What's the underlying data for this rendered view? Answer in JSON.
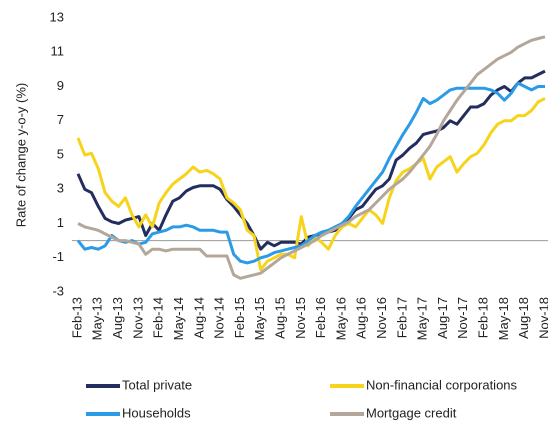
{
  "chart_data": {
    "type": "line",
    "y_label": "Rate of change y-o-y (%)",
    "categories": [
      "Feb-13",
      null,
      null,
      "May-13",
      null,
      null,
      "Aug-13",
      null,
      null,
      "Nov-13",
      null,
      null,
      "Feb-14",
      null,
      null,
      "May-14",
      null,
      null,
      "Aug-14",
      null,
      null,
      "Nov-14",
      null,
      null,
      "Feb-15",
      null,
      null,
      "May-15",
      null,
      null,
      "Aug-15",
      null,
      null,
      "Nov-15",
      null,
      null,
      "Feb-16",
      null,
      null,
      "May-16",
      null,
      null,
      "Aug-16",
      null,
      null,
      "Nov-16",
      null,
      null,
      "Feb-17",
      null,
      null,
      "May-17",
      null,
      null,
      "Aug-17",
      null,
      null,
      "Nov-17",
      null,
      null,
      "Feb-18",
      null,
      null,
      "May-18",
      null,
      null,
      "Aug-18",
      null,
      null,
      "Nov-18"
    ],
    "series": [
      {
        "name": "Total private",
        "color": "#232d5e",
        "values": [
          3.9,
          3.0,
          2.8,
          2.0,
          1.3,
          1.1,
          1.0,
          1.2,
          1.3,
          1.4,
          0.3,
          1.0,
          0.6,
          1.5,
          2.3,
          2.5,
          2.9,
          3.1,
          3.2,
          3.2,
          3.2,
          3.0,
          2.4,
          2.0,
          1.5,
          1.0,
          0.3,
          -0.5,
          -0.1,
          -0.3,
          -0.1,
          -0.1,
          -0.1,
          -0.2,
          0.2,
          0.3,
          0.4,
          0.5,
          0.6,
          1.0,
          1.3,
          1.8,
          2.0,
          2.5,
          3.0,
          3.2,
          3.6,
          4.7,
          5.0,
          5.4,
          5.7,
          6.2,
          6.3,
          6.4,
          6.6,
          7.0,
          6.8,
          7.3,
          7.8,
          7.8,
          8.0,
          8.5,
          8.8,
          9.0,
          8.7,
          9.2,
          9.5,
          9.5,
          9.7,
          9.9
        ]
      },
      {
        "name": "Non-financial corporations",
        "color": "#f7d31c",
        "values": [
          6.0,
          5.0,
          5.1,
          4.2,
          2.8,
          2.3,
          2.0,
          2.5,
          1.5,
          0.8,
          1.5,
          0.8,
          2.2,
          2.8,
          3.3,
          3.6,
          3.9,
          4.3,
          4.0,
          4.1,
          3.9,
          3.6,
          2.5,
          2.2,
          1.8,
          0.6,
          0.3,
          -1.7,
          -1.2,
          -1.0,
          -0.8,
          -0.8,
          -1.0,
          1.4,
          -0.3,
          0.2,
          -0.1,
          -0.5,
          0.3,
          0.8,
          1.0,
          0.8,
          1.3,
          1.8,
          1.5,
          1.0,
          2.5,
          3.5,
          4.0,
          4.2,
          4.5,
          4.8,
          3.6,
          4.3,
          4.6,
          4.9,
          4.0,
          4.5,
          4.9,
          5.1,
          5.6,
          6.3,
          6.8,
          7.0,
          7.0,
          7.3,
          7.3,
          7.6,
          8.1,
          8.3
        ]
      },
      {
        "name": "Households",
        "color": "#2b9be8",
        "values": [
          0.0,
          -0.5,
          -0.4,
          -0.5,
          -0.3,
          0.3,
          0.0,
          -0.1,
          0.0,
          -0.2,
          -0.1,
          0.4,
          0.5,
          0.6,
          0.8,
          0.8,
          0.9,
          0.8,
          0.6,
          0.6,
          0.6,
          0.5,
          0.5,
          -0.8,
          -1.2,
          -1.3,
          -1.2,
          -1.0,
          -0.9,
          -0.7,
          -0.6,
          -0.5,
          -0.4,
          -0.3,
          0.0,
          0.3,
          0.5,
          0.6,
          0.8,
          1.0,
          1.4,
          2.0,
          2.5,
          3.0,
          3.5,
          4.0,
          4.8,
          5.5,
          6.2,
          6.8,
          7.5,
          8.3,
          8.0,
          8.2,
          8.5,
          8.8,
          8.9,
          8.9,
          8.9,
          8.9,
          8.9,
          8.8,
          8.6,
          8.2,
          8.6,
          9.2,
          9.0,
          8.8,
          9.0,
          9.0
        ]
      },
      {
        "name": "Mortgage credit",
        "color": "#b3a79b",
        "values": [
          1.0,
          0.8,
          0.7,
          0.6,
          0.4,
          0.2,
          0.0,
          0.0,
          -0.1,
          -0.2,
          -0.8,
          -0.5,
          -0.5,
          -0.6,
          -0.5,
          -0.5,
          -0.5,
          -0.5,
          -0.5,
          -0.9,
          -0.9,
          -0.9,
          -0.9,
          -2.0,
          -2.2,
          -2.1,
          -2.0,
          -1.9,
          -1.6,
          -1.3,
          -1.0,
          -0.8,
          -0.6,
          -0.4,
          -0.2,
          0.0,
          0.3,
          0.5,
          0.7,
          0.9,
          1.1,
          1.4,
          1.6,
          1.8,
          2.2,
          2.6,
          3.0,
          3.3,
          3.6,
          4.0,
          4.5,
          5.0,
          5.5,
          6.2,
          7.0,
          7.6,
          8.2,
          8.7,
          9.2,
          9.7,
          10.0,
          10.3,
          10.6,
          10.8,
          11.0,
          11.3,
          11.5,
          11.7,
          11.8,
          11.9
        ]
      }
    ],
    "ylim": [
      -3,
      13
    ],
    "yticks": [
      -3,
      -1,
      1,
      3,
      5,
      7,
      9,
      11,
      13
    ],
    "baseline": 0,
    "legend": "bottom"
  }
}
